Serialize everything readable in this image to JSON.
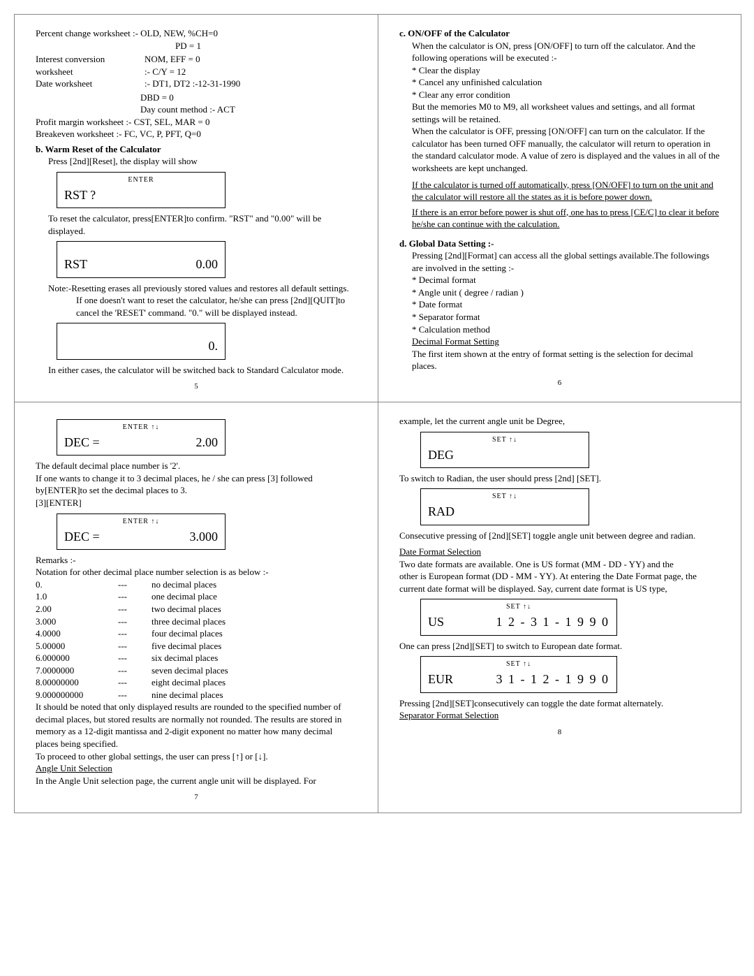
{
  "p5": {
    "ws": {
      "l1": "Percent change worksheet :- OLD, NEW, %CH=0",
      "l1b": "PD = 1",
      "l2a": "Interest conversion",
      "l2b": "NOM, EFF = 0",
      "l3a": "worksheet",
      "l3b": ":- C/Y = 12",
      "l4a": "Date worksheet",
      "l4b": ":- DT1, DT2 :-12-31-1990",
      "l4c": "DBD = 0",
      "l4d": "Day count method :- ACT",
      "l5": "Profit margin worksheet     :- CST, SEL, MAR = 0",
      "l6": "Breakeven worksheet        :- FC, VC, P, PFT, Q=0"
    },
    "b_title": "b. Warm Reset of the Calculator",
    "b1": "Press [2nd][Reset],  the display will show",
    "lcd1_top": "ENTER",
    "lcd1_l": "RST ?",
    "b2": "To reset the calculator, press[ENTER]to confirm. \"RST\" and \"0.00\" will be displayed.",
    "lcd2_l": "RST",
    "lcd2_r": "0.00",
    "note_h": "Note:-",
    "note": "Resetting erases all previously stored values and restores all default settings. If one doesn't want to reset the calculator, he/she can press [2nd][QUIT]to cancel the 'RESET' command. \"0.\" will be displayed instead.",
    "lcd3_r": "0.",
    "b3": "In either cases, the calculator will be switched back to Standard Calculator mode.",
    "pnum": "5"
  },
  "p6": {
    "c_title": "c. ON/OFF of the Calculator",
    "c1": "When the calculator is ON,  press [ON/OFF] to turn off the calculator. And the following operations will be executed :-",
    "c_b1": "* Clear the display",
    "c_b2": "* Cancel any unfinished calculation",
    "c_b3": "* Clear any error condition",
    "c2": "But the memories M0 to M9, all worksheet values and settings,  and all format settings will be retained.",
    "c3": "When the calculator is OFF,  pressing [ON/OFF] can turn on the calculator. If the calculator  has been turned OFF manually,  the calculator will return to  operation in the standard calculator mode. A value of zero is displayed and the values in all of the worksheets are kept unchanged.",
    "c4": "If the calculator is turned off automatically, press [ON/OFF] to turn on the unit and the calculator will restore all the states as it is before power down.",
    "c5": "If there is an error before power is shut off,  one has to press [CE/C] to clear it before he/she can continue with the calculation.",
    "d_title": "d. Global Data Setting :-",
    "d1": "Pressing [2nd][Format] can access all the global settings available.The followings are involved in the setting :-",
    "d_b1": "* Decimal format",
    "d_b2": "* Angle unit ( degree / radian )",
    "d_b3": "* Date format",
    "d_b4": "* Separator format",
    "d_b5": "* Calculation method",
    "d_sub": "Decimal Format Setting",
    "d2": "The first item shown at the entry of format setting is the selection for decimal places.",
    "pnum": "6"
  },
  "p7": {
    "lcd1_top": "ENTER   ↑↓",
    "lcd1_l": "DEC =",
    "lcd1_r": "2.00",
    "t1": "The default decimal place number is '2'.",
    "t2": "If one wants to change it to 3 decimal places, he / she can press [3] followed by[ENTER]to set the decimal places to 3.",
    "t3": "[3][ENTER]",
    "lcd2_top": "ENTER   ↑↓",
    "lcd2_l": "DEC =",
    "lcd2_r": "3.000",
    "rem_h": "Remarks :-",
    "rem1": "Notation for other decimal place number selection is as below :-",
    "dectable": [
      [
        "0.",
        "---",
        "no decimal places"
      ],
      [
        "1.0",
        "---",
        "one decimal place"
      ],
      [
        "2.00",
        "---",
        "two decimal places"
      ],
      [
        "3.000",
        "---",
        "three decimal places"
      ],
      [
        "4.0000",
        "---",
        "four decimal places"
      ],
      [
        "5.00000",
        "---",
        "five decimal places"
      ],
      [
        "6.000000",
        "---",
        "six decimal places"
      ],
      [
        "7.0000000",
        "---",
        "seven decimal places"
      ],
      [
        "8.00000000",
        "---",
        "eight decimal places"
      ],
      [
        "9.000000000",
        "---",
        "nine decimal places"
      ]
    ],
    "t4": "It should be noted that only displayed results are rounded to the specified number of decimal places, but stored results are normally not rounded. The results are stored in memory as a 12-digit mantissa and 2-digit exponent no matter how many decimal places being specified.",
    "t5": "To proceed to other global settings, the user can press [↑] or [↓].",
    "sub": "Angle Unit Selection",
    "t6": "In the Angle Unit selection page, the current angle unit will be displayed. For",
    "pnum": "7"
  },
  "p8": {
    "t1": "example, let the current angle unit be Degree,",
    "lcd1_top": "SET   ↑↓",
    "lcd1_l": "DEG",
    "t2": "To switch to Radian, the user should press [2nd] [SET].",
    "lcd2_top": "SET   ↑↓",
    "lcd2_l": "RAD",
    "t3": "Consecutive pressing of [2nd][SET] toggle angle unit between degree and radian.",
    "sub1": "Date Format Selection",
    "t4": "Two date formats are available. One is US format (MM - DD - YY) and the",
    "t4b": "other is European format (DD - MM - YY).  At entering the Date Format page, the current date format will be displayed. Say, current date format is US type,",
    "lcd3_top": "SET   ↑↓",
    "lcd3_l": "US",
    "lcd3_r": "1 2 - 3 1 - 1 9 9 0",
    "t5": "One can press [2nd][SET] to switch to European date format.",
    "lcd4_top": "SET   ↑↓",
    "lcd4_l": "EUR",
    "lcd4_r": "3 1 - 1 2 - 1 9 9 0",
    "t6": "Pressing [2nd][SET]consecutively can toggle the date format alternately.",
    "sub2": "Separator  Format  Selection",
    "pnum": "8"
  }
}
